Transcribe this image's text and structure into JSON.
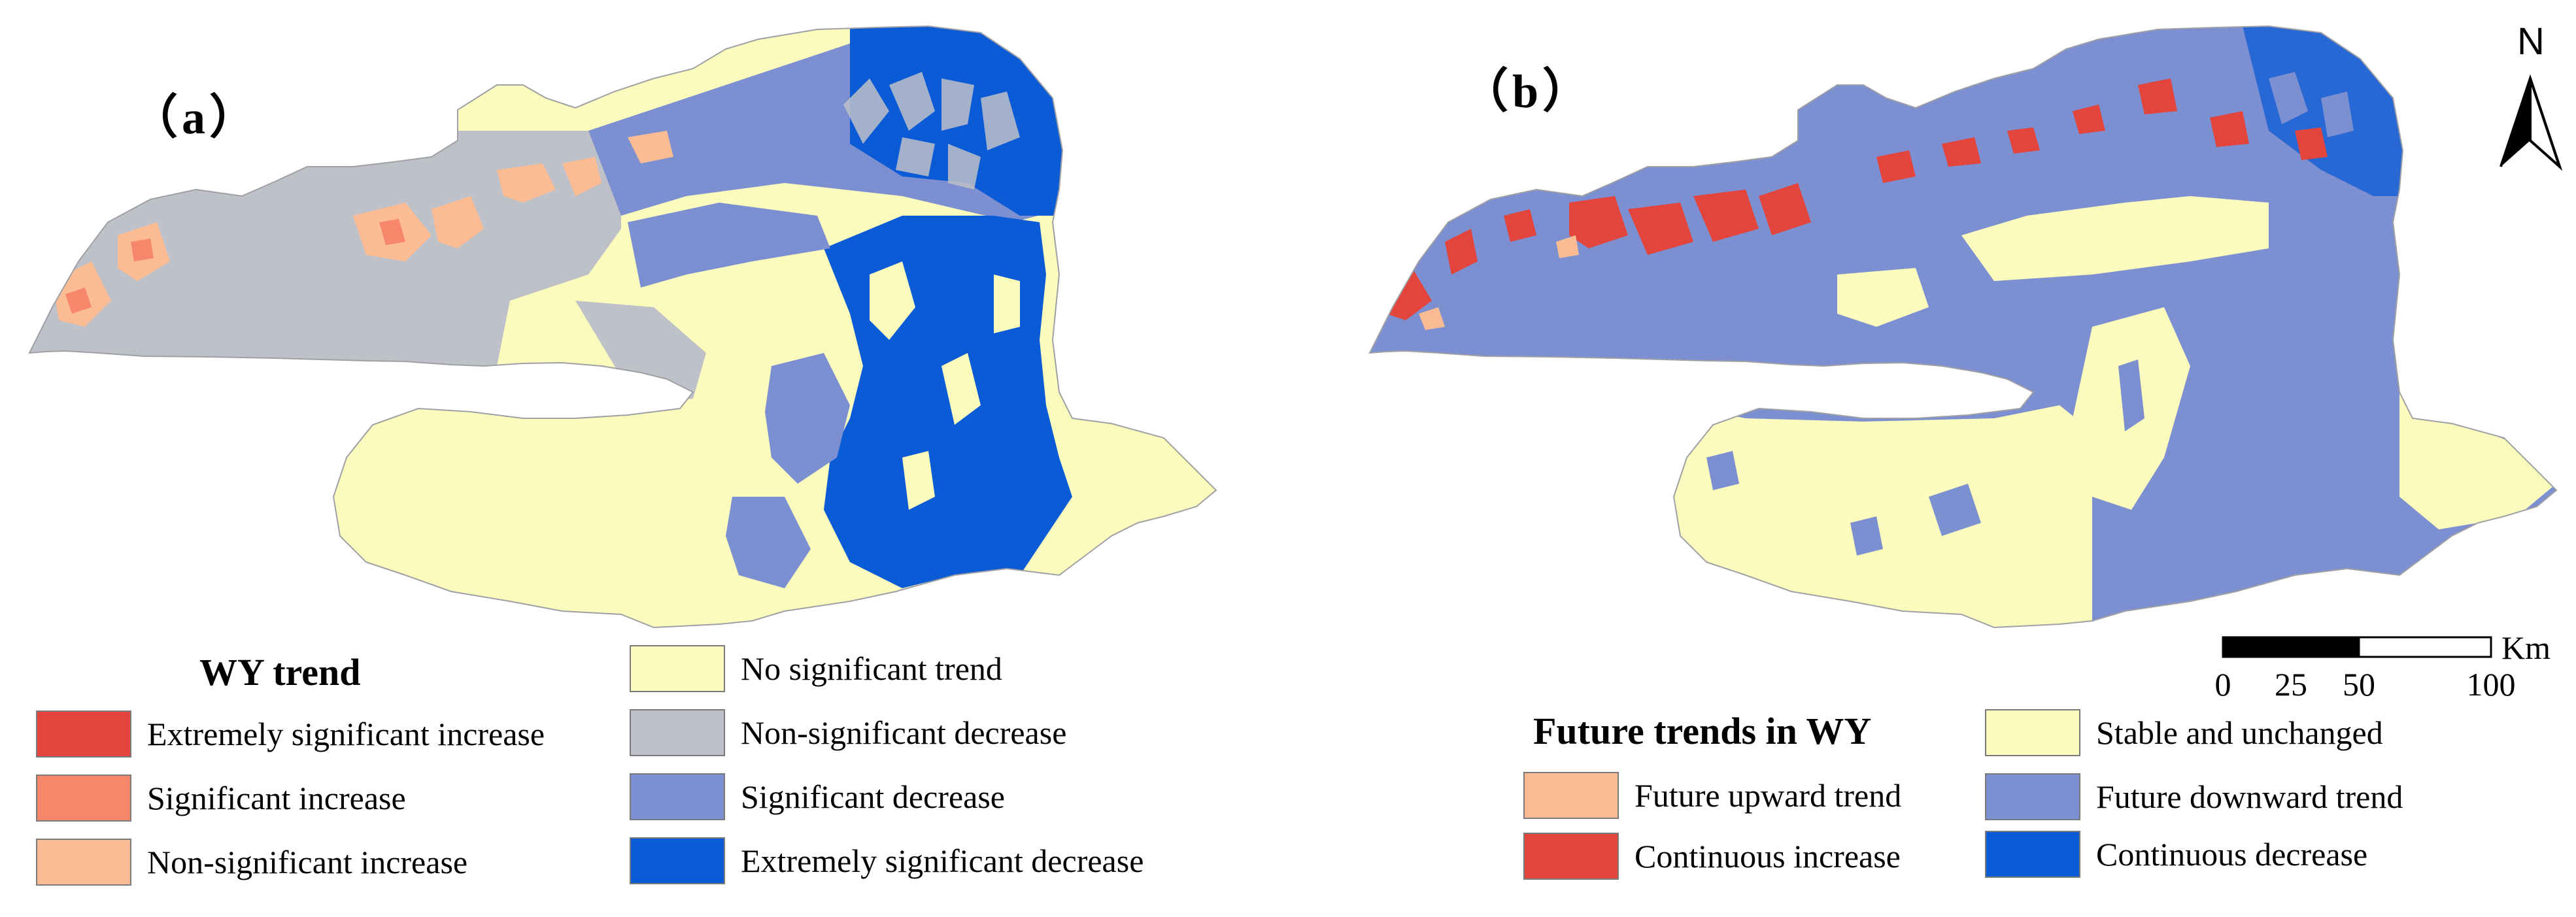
{
  "panels": {
    "a": {
      "label": "（a）"
    },
    "b": {
      "label": "（b）"
    }
  },
  "legend_a": {
    "title": "WY trend",
    "items": [
      {
        "label": "Extremely significant increase",
        "color": "#e3443c"
      },
      {
        "label": "Significant increase",
        "color": "#f7876a"
      },
      {
        "label": "Non-significant increase",
        "color": "#fbbc93"
      },
      {
        "label": "No significant trend",
        "color": "#fcfbbe"
      },
      {
        "label": "Non-significant decrease",
        "color": "#bfc1c8"
      },
      {
        "label": "Significant decrease",
        "color": "#7b8fd1"
      },
      {
        "label": "Extremely significant decrease",
        "color": "#0c5bd6"
      }
    ]
  },
  "legend_b": {
    "title": "Future trends in WY",
    "items": [
      {
        "label": "Future upward trend",
        "color": "#fbbc93"
      },
      {
        "label": "Continuous increase",
        "color": "#e3443c"
      },
      {
        "label": "Stable and unchanged",
        "color": "#fcfbbe"
      },
      {
        "label": "Future downward trend",
        "color": "#7b8fd1"
      },
      {
        "label": "Continuous decrease",
        "color": "#0c5bd6"
      }
    ]
  },
  "scale_bar": {
    "ticks": [
      "0",
      "25",
      "50",
      "100"
    ],
    "unit": "Km"
  },
  "north_arrow": {
    "label": "N",
    "icon": "north-arrow-icon"
  }
}
